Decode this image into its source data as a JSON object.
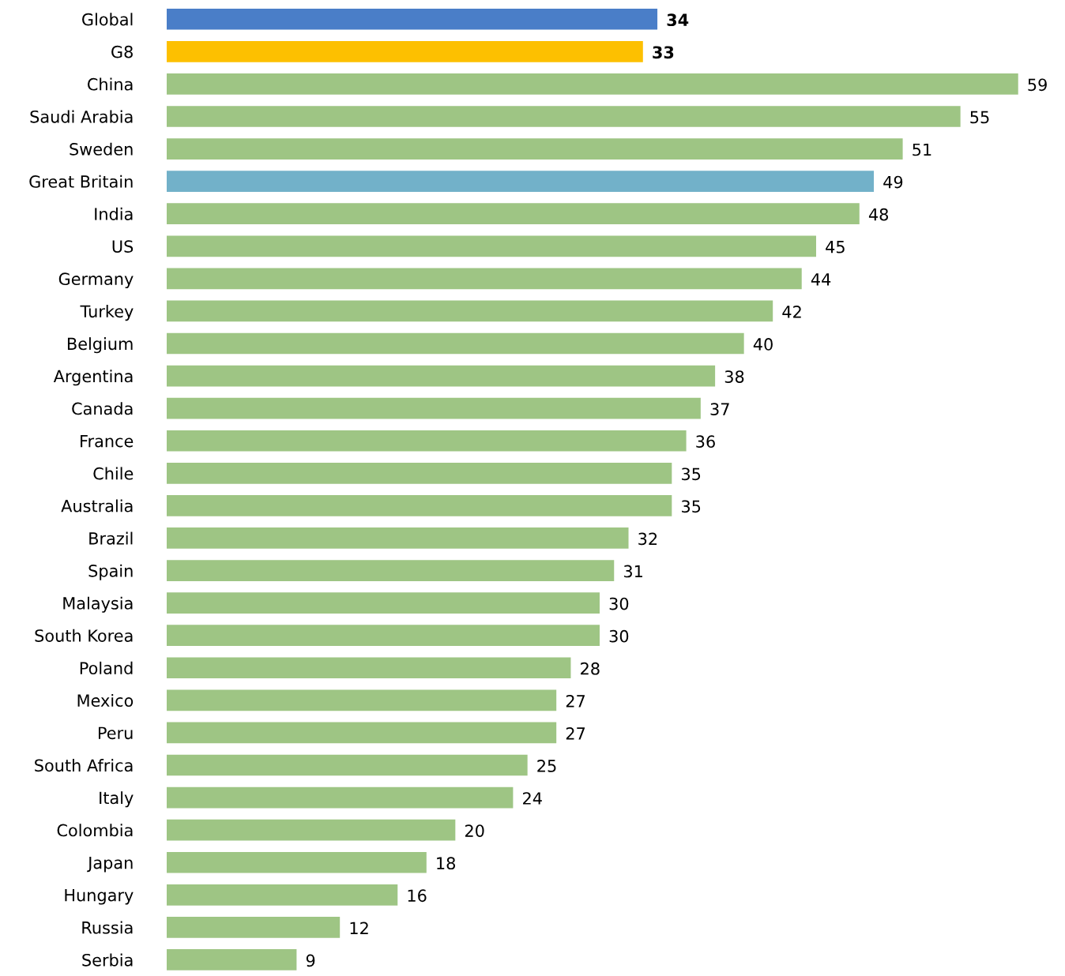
{
  "chart_data": {
    "type": "bar",
    "orientation": "horizontal",
    "data_labels": true,
    "categories": [
      "Global",
      "G8",
      "China",
      "Saudi Arabia",
      "Sweden",
      "Great Britain",
      "India",
      "US",
      "Germany",
      "Turkey",
      "Belgium",
      "Argentina",
      "Canada",
      "France",
      "Chile",
      "Australia",
      "Brazil",
      "Spain",
      "Malaysia",
      "South Korea",
      "Poland",
      "Mexico",
      "Peru",
      "South Africa",
      "Italy",
      "Colombia",
      "Japan",
      "Hungary",
      "Russia",
      "Serbia"
    ],
    "values": [
      34,
      33,
      59,
      55,
      51,
      49,
      48,
      45,
      44,
      42,
      40,
      38,
      37,
      36,
      35,
      35,
      32,
      31,
      30,
      30,
      28,
      27,
      27,
      25,
      24,
      20,
      18,
      16,
      12,
      9
    ],
    "colors": [
      "#4a7ec8",
      "#fdc000",
      "#9ec584",
      "#9ec584",
      "#9ec584",
      "#72b1c9",
      "#9ec584",
      "#9ec584",
      "#9ec584",
      "#9ec584",
      "#9ec584",
      "#9ec584",
      "#9ec584",
      "#9ec584",
      "#9ec584",
      "#9ec584",
      "#9ec584",
      "#9ec584",
      "#9ec584",
      "#9ec584",
      "#9ec584",
      "#9ec584",
      "#9ec584",
      "#9ec584",
      "#9ec584",
      "#9ec584",
      "#9ec584",
      "#9ec584",
      "#9ec584",
      "#9ec584"
    ],
    "grid": false,
    "legend": false,
    "tick_labels": "y"
  }
}
